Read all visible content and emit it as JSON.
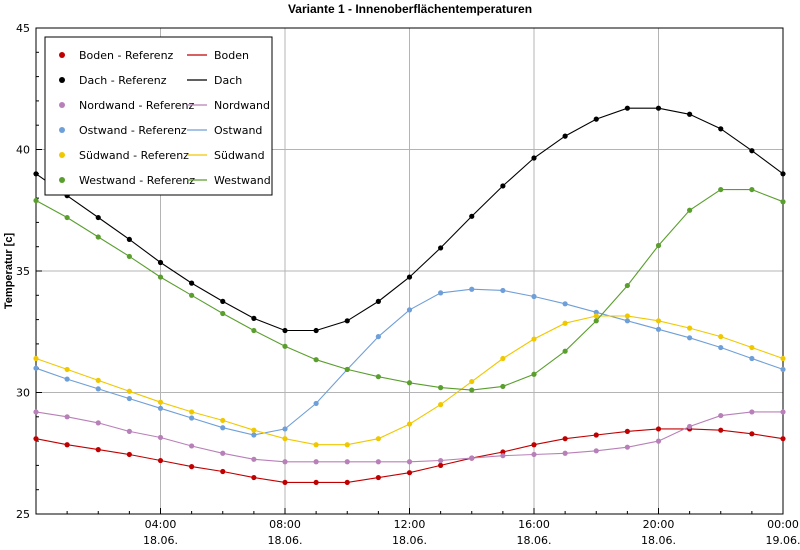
{
  "chart_data": {
    "type": "line",
    "title": "Variante 1 - Innenoberflächentemperaturen",
    "ylabel": "Temperatur [c]",
    "xlabel": "",
    "ylim": [
      25,
      45
    ],
    "yticks": [
      25,
      30,
      35,
      40,
      45
    ],
    "xlim": [
      0,
      24
    ],
    "xticks": [
      {
        "x": 4,
        "label": "04:00",
        "date": "18.06."
      },
      {
        "x": 8,
        "label": "08:00",
        "date": "18.06."
      },
      {
        "x": 12,
        "label": "12:00",
        "date": "18.06."
      },
      {
        "x": 16,
        "label": "16:00",
        "date": "18.06."
      },
      {
        "x": 20,
        "label": "20:00",
        "date": "18.06."
      },
      {
        "x": 24,
        "label": "00:00",
        "date": "19.06."
      }
    ],
    "grid": true,
    "legend_position": "top-left",
    "x": [
      0,
      1,
      2,
      3,
      4,
      5,
      6,
      7,
      8,
      9,
      10,
      11,
      12,
      13,
      14,
      15,
      16,
      17,
      18,
      19,
      20,
      21,
      22,
      23,
      24
    ],
    "series": [
      {
        "name": "Boden",
        "ref_name": "Boden - Referenz",
        "color": "#c00000",
        "values": [
          28.1,
          27.85,
          27.65,
          27.45,
          27.2,
          26.95,
          26.75,
          26.5,
          26.3,
          26.3,
          26.3,
          26.5,
          26.7,
          27.0,
          27.3,
          27.55,
          27.85,
          28.1,
          28.25,
          28.4,
          28.5,
          28.5,
          28.45,
          28.3,
          28.1
        ]
      },
      {
        "name": "Dach",
        "ref_name": "Dach - Referenz",
        "color": "#000000",
        "values": [
          39.0,
          38.1,
          37.2,
          36.3,
          35.35,
          34.5,
          33.75,
          33.05,
          32.55,
          32.55,
          32.95,
          33.75,
          34.75,
          35.95,
          37.25,
          38.5,
          39.65,
          40.55,
          41.25,
          41.7,
          41.7,
          41.45,
          40.85,
          39.95,
          39.0
        ]
      },
      {
        "name": "Nordwand",
        "ref_name": "Nordwand - Referenz",
        "color": "#b880b8",
        "values": [
          29.2,
          29.0,
          28.75,
          28.4,
          28.15,
          27.8,
          27.5,
          27.25,
          27.15,
          27.15,
          27.15,
          27.15,
          27.15,
          27.2,
          27.3,
          27.4,
          27.45,
          27.5,
          27.6,
          27.75,
          28.0,
          28.6,
          29.05,
          29.2,
          29.2
        ]
      },
      {
        "name": "Ostwand",
        "ref_name": "Ostwand - Referenz",
        "color": "#6f9fd8",
        "values": [
          31.0,
          30.55,
          30.15,
          29.75,
          29.35,
          28.95,
          28.55,
          28.25,
          28.5,
          29.55,
          30.95,
          32.3,
          33.4,
          34.1,
          34.25,
          34.2,
          33.95,
          33.65,
          33.3,
          32.95,
          32.6,
          32.25,
          31.85,
          31.4,
          30.95
        ]
      },
      {
        "name": "Südwand",
        "ref_name": "Südwand - Referenz",
        "color": "#f0c800",
        "values": [
          31.4,
          30.95,
          30.5,
          30.05,
          29.6,
          29.2,
          28.85,
          28.45,
          28.1,
          27.85,
          27.85,
          28.1,
          28.7,
          29.5,
          30.45,
          31.4,
          32.2,
          32.85,
          33.15,
          33.15,
          32.95,
          32.65,
          32.3,
          31.85,
          31.4
        ]
      },
      {
        "name": "Westwand",
        "ref_name": "Westwand - Referenz",
        "color": "#5a9e2e",
        "values": [
          37.9,
          37.2,
          36.4,
          35.6,
          34.75,
          34.0,
          33.25,
          32.55,
          31.9,
          31.35,
          30.95,
          30.65,
          30.4,
          30.2,
          30.1,
          30.25,
          30.75,
          31.7,
          32.95,
          34.4,
          36.05,
          37.5,
          38.35,
          38.35,
          37.85
        ]
      }
    ]
  }
}
